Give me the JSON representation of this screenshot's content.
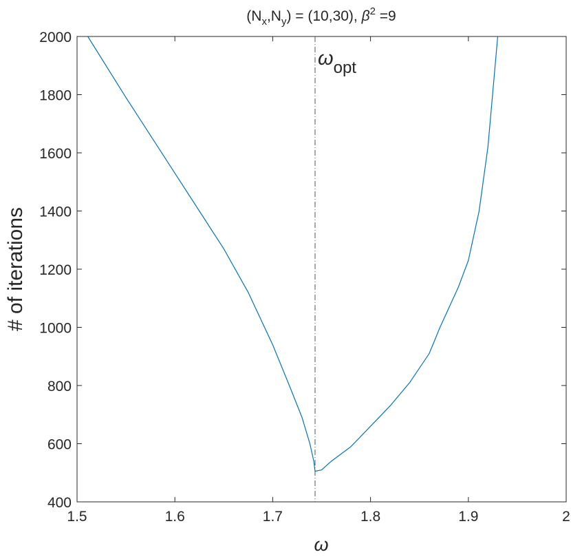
{
  "chart_data": {
    "type": "line",
    "title": [
      "(N",
      "x",
      ",N",
      "y",
      ") = (10,30),  ",
      "β",
      "2",
      " =9"
    ],
    "x_label": "ω",
    "y_label": "# of iterations",
    "annotation": [
      "ω",
      "opt"
    ],
    "vline": 1.7433,
    "x": [
      1.511,
      1.55,
      1.6,
      1.625,
      1.65,
      1.675,
      1.7,
      1.717,
      1.73,
      1.738,
      1.742,
      1.7433,
      1.75,
      1.76,
      1.78,
      1.8,
      1.82,
      1.84,
      1.86,
      1.871,
      1.89,
      1.9,
      1.911,
      1.92,
      1.93
    ],
    "series": [
      {
        "name": "iterations",
        "color": "#0072bd",
        "values": [
          2000,
          1790,
          1530,
          1400,
          1270,
          1120,
          940,
          800,
          690,
          600,
          540,
          505,
          510,
          540,
          590,
          660,
          730,
          810,
          910,
          1000,
          1140,
          1230,
          1400,
          1620,
          2000
        ]
      }
    ],
    "xlim": [
      1.5,
      2
    ],
    "xticks": [
      1.5,
      1.6,
      1.7,
      1.8,
      1.9,
      2
    ],
    "ylim": [
      400,
      2000
    ],
    "yticks": [
      400,
      600,
      800,
      1000,
      1200,
      1400,
      1600,
      1800,
      2000
    ]
  }
}
